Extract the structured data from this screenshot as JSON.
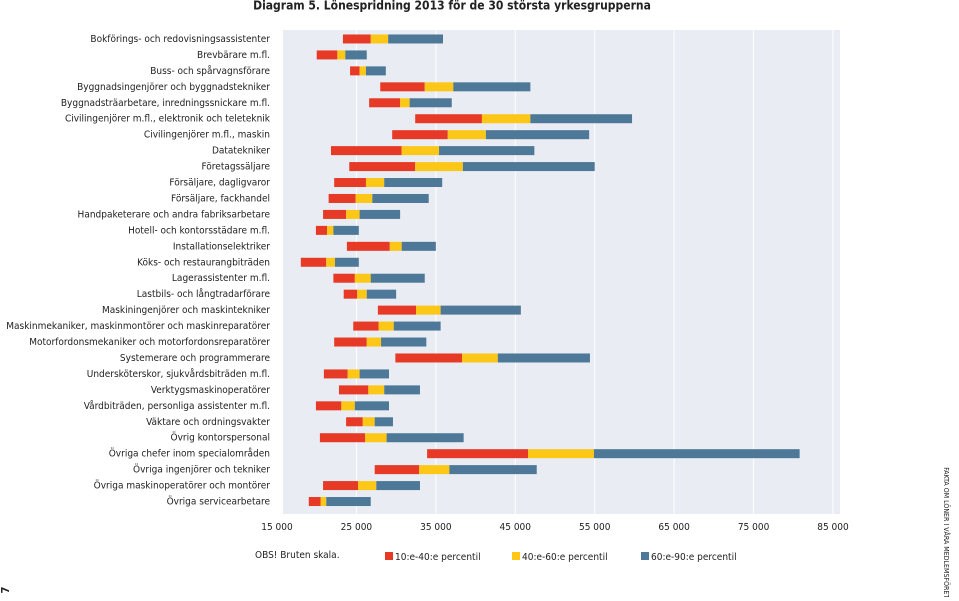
{
  "chart_data": {
    "type": "floating-bar",
    "title": "Diagram 5. Lönespridning 2013 för de 30 största yrkesgrupperna",
    "note": "OBS! Bruten skala.",
    "side_text": "FAKTA OM LÖNER I VÅRA MEDLEMSFÖRETAG",
    "page_number": "7",
    "categories": [
      "Bokförings- och redovisningsassistenter",
      "Brevbärare m.fl.",
      "Buss- och spårvagnsförare",
      "Byggnadsingenjörer och byggnadstekniker",
      "Byggnadsträarbetare, inredningssnickare m.fl.",
      "Civilingenjörer m.fl., elektronik och teleteknik",
      "Civilingenjörer m.fl., maskin",
      "Datatekniker",
      "Företagssäljare",
      "Försäljare, dagligvaror",
      "Försäljare, fackhandel",
      "Handpaketerare och andra fabriksarbetare",
      "Hotell- och kontorsstädare m.fl.",
      "Installationselektriker",
      "Köks- och restaurangbiträden",
      "Lagerassistenter m.fl.",
      "Lastbils- och långtradarförare",
      "Maskiningenjörer och maskintekniker",
      "Maskinmekaniker, maskinmontörer och maskinreparatörer",
      "Motorfordonsmekaniker och motorfordonsreparatörer",
      "Systemerare och programmerare",
      "Undersköterskor, sjukvårdsbiträden m.fl.",
      "Verktygsmaskinoperatörer",
      "Vårdbiträden, personliga assistenter m.fl.",
      "Väktare och ordningsvakter",
      "Övrig kontorspersonal",
      "Övriga chefer inom specialområden",
      "Övriga ingenjörer och tekniker",
      "Övriga maskinoperatörer och montörer",
      "Övriga servicearbetare"
    ],
    "series": [
      {
        "name": "10:e-40:e percentil",
        "color": "#e63a26",
        "values": [
          [
            23300,
            26800
          ],
          [
            20000,
            22600
          ],
          [
            24200,
            25400
          ],
          [
            28000,
            33600
          ],
          [
            26600,
            30500
          ],
          [
            32400,
            40800
          ],
          [
            29500,
            36500
          ],
          [
            21800,
            30700
          ],
          [
            24100,
            32400
          ],
          [
            22200,
            26200
          ],
          [
            21500,
            24900
          ],
          [
            20800,
            23700
          ],
          [
            19900,
            21300
          ],
          [
            23800,
            29200
          ],
          [
            18000,
            21200
          ],
          [
            22100,
            24800
          ],
          [
            23400,
            25100
          ],
          [
            27700,
            32500
          ],
          [
            24600,
            27800
          ],
          [
            22200,
            26300
          ],
          [
            29900,
            38300
          ],
          [
            20900,
            23900
          ],
          [
            22800,
            26500
          ],
          [
            19900,
            23100
          ],
          [
            23700,
            25800
          ],
          [
            20400,
            26100
          ],
          [
            33900,
            46600
          ],
          [
            27300,
            32900
          ],
          [
            20800,
            25200
          ],
          [
            19000,
            20500
          ]
        ]
      },
      {
        "name": "40:e-60:e percentil",
        "color": "#fcc716",
        "values": [
          [
            26800,
            29000
          ],
          [
            22600,
            23600
          ],
          [
            25400,
            26200
          ],
          [
            33600,
            37200
          ],
          [
            30500,
            31700
          ],
          [
            40800,
            46900
          ],
          [
            36500,
            41300
          ],
          [
            30700,
            35400
          ],
          [
            32400,
            38400
          ],
          [
            26200,
            28500
          ],
          [
            24900,
            27000
          ],
          [
            23700,
            25400
          ],
          [
            21300,
            22100
          ],
          [
            29200,
            30700
          ],
          [
            21200,
            22300
          ],
          [
            24800,
            26800
          ],
          [
            25100,
            26300
          ],
          [
            32500,
            35600
          ],
          [
            27800,
            29700
          ],
          [
            26300,
            28100
          ],
          [
            38300,
            42800
          ],
          [
            23900,
            25400
          ],
          [
            26500,
            28500
          ],
          [
            23100,
            24800
          ],
          [
            25800,
            27300
          ],
          [
            26100,
            28800
          ],
          [
            46600,
            54900
          ],
          [
            32900,
            36700
          ],
          [
            25200,
            27500
          ],
          [
            20500,
            21200
          ]
        ]
      },
      {
        "name": "60:e-90:e percentil",
        "color": "#4d7898",
        "values": [
          [
            29000,
            35900
          ],
          [
            23600,
            26300
          ],
          [
            26200,
            28700
          ],
          [
            37200,
            46900
          ],
          [
            31700,
            37000
          ],
          [
            46900,
            59700
          ],
          [
            41300,
            54300
          ],
          [
            35400,
            47400
          ],
          [
            38400,
            55000
          ],
          [
            28500,
            35800
          ],
          [
            27000,
            34100
          ],
          [
            25400,
            30500
          ],
          [
            22100,
            25300
          ],
          [
            30700,
            35000
          ],
          [
            22300,
            25300
          ],
          [
            26800,
            33600
          ],
          [
            26300,
            30000
          ],
          [
            35600,
            45700
          ],
          [
            29700,
            35600
          ],
          [
            28100,
            33800
          ],
          [
            42800,
            54400
          ],
          [
            25400,
            29100
          ],
          [
            28500,
            33000
          ],
          [
            24800,
            29100
          ],
          [
            27300,
            29600
          ],
          [
            28800,
            38500
          ],
          [
            54900,
            80800
          ],
          [
            36700,
            47700
          ],
          [
            27500,
            33000
          ],
          [
            21200,
            26800
          ]
        ]
      }
    ],
    "xlim": [
      15000,
      85000
    ],
    "xticks": [
      {
        "value": 15000,
        "label": "15 000"
      },
      {
        "value": 25000,
        "label": "25 000"
      },
      {
        "value": 35000,
        "label": "35 000"
      },
      {
        "value": 45000,
        "label": "45 000"
      },
      {
        "value": 55000,
        "label": "55 000"
      },
      {
        "value": 65000,
        "label": "65 000"
      },
      {
        "value": 75000,
        "label": "75 000"
      },
      {
        "value": 85000,
        "label": "85 000"
      }
    ],
    "grid": true
  }
}
